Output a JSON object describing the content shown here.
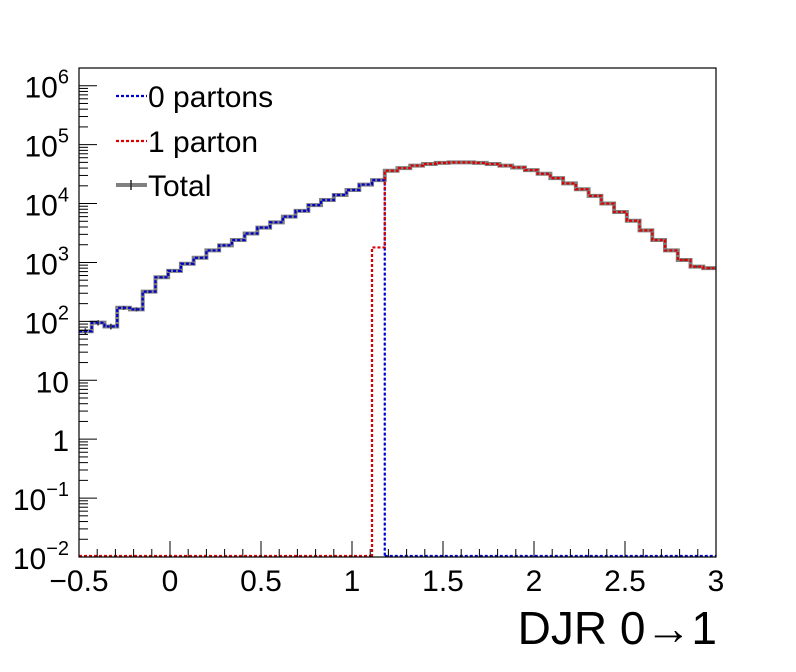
{
  "chart_data": {
    "type": "histogram",
    "xlabel": "DJR 0→1",
    "ylabel": "",
    "y_scale": "log",
    "xlim": [
      -0.5,
      3
    ],
    "ylim": [
      0.01,
      2000000
    ],
    "bin_width": 0.07,
    "x_ticks": [
      {
        "value": -0.5,
        "label": "−0.5"
      },
      {
        "value": 0,
        "label": "0"
      },
      {
        "value": 0.5,
        "label": "0.5"
      },
      {
        "value": 1,
        "label": "1"
      },
      {
        "value": 1.5,
        "label": "1.5"
      },
      {
        "value": 2,
        "label": "2"
      },
      {
        "value": 2.5,
        "label": "2.5"
      },
      {
        "value": 3,
        "label": "3"
      }
    ],
    "y_ticks": [
      {
        "exp": -2,
        "base": "10",
        "sup": "−2"
      },
      {
        "exp": -1,
        "base": "10",
        "sup": "−1"
      },
      {
        "exp": 0,
        "base": "1",
        "sup": ""
      },
      {
        "exp": 1,
        "base": "10",
        "sup": ""
      },
      {
        "exp": 2,
        "base": "10",
        "sup": "2"
      },
      {
        "exp": 3,
        "base": "10",
        "sup": "3"
      },
      {
        "exp": 4,
        "base": "10",
        "sup": "4"
      },
      {
        "exp": 5,
        "base": "10",
        "sup": "5"
      },
      {
        "exp": 6,
        "base": "10",
        "sup": "6"
      }
    ],
    "series": [
      {
        "name": "0 partons",
        "color": "#0000cc",
        "style": "dotted",
        "bins": [
          [
            -0.5,
            68
          ],
          [
            -0.43,
            95
          ],
          [
            -0.36,
            82
          ],
          [
            -0.29,
            170
          ],
          [
            -0.22,
            160
          ],
          [
            -0.15,
            320
          ],
          [
            -0.08,
            560
          ],
          [
            -0.01,
            720
          ],
          [
            0.06,
            950
          ],
          [
            0.13,
            1200
          ],
          [
            0.2,
            1600
          ],
          [
            0.27,
            1950
          ],
          [
            0.34,
            2400
          ],
          [
            0.41,
            3100
          ],
          [
            0.48,
            3900
          ],
          [
            0.55,
            4800
          ],
          [
            0.62,
            6000
          ],
          [
            0.69,
            7500
          ],
          [
            0.76,
            9400
          ],
          [
            0.83,
            11500
          ],
          [
            0.9,
            14000
          ],
          [
            0.97,
            17000
          ],
          [
            1.04,
            21000
          ],
          [
            1.11,
            25000
          ]
        ]
      },
      {
        "name": "1 parton",
        "color": "#dd0000",
        "style": "dotted",
        "bins": [
          [
            1.11,
            1800
          ],
          [
            1.18,
            36000
          ],
          [
            1.25,
            40000
          ],
          [
            1.32,
            44000
          ],
          [
            1.39,
            47000
          ],
          [
            1.46,
            49000
          ],
          [
            1.53,
            50000
          ],
          [
            1.6,
            50000
          ],
          [
            1.67,
            49000
          ],
          [
            1.74,
            47000
          ],
          [
            1.81,
            44000
          ],
          [
            1.88,
            41000
          ],
          [
            1.95,
            37000
          ],
          [
            2.02,
            32000
          ],
          [
            2.09,
            27000
          ],
          [
            2.16,
            22000
          ],
          [
            2.23,
            17500
          ],
          [
            2.3,
            13500
          ],
          [
            2.37,
            10000
          ],
          [
            2.44,
            7200
          ],
          [
            2.51,
            5100
          ],
          [
            2.58,
            3500
          ],
          [
            2.65,
            2400
          ],
          [
            2.72,
            1600
          ],
          [
            2.79,
            1100
          ],
          [
            2.86,
            850
          ],
          [
            2.93,
            800
          ]
        ]
      },
      {
        "name": "Total",
        "color": "#808080",
        "style": "solid"
      }
    ]
  }
}
